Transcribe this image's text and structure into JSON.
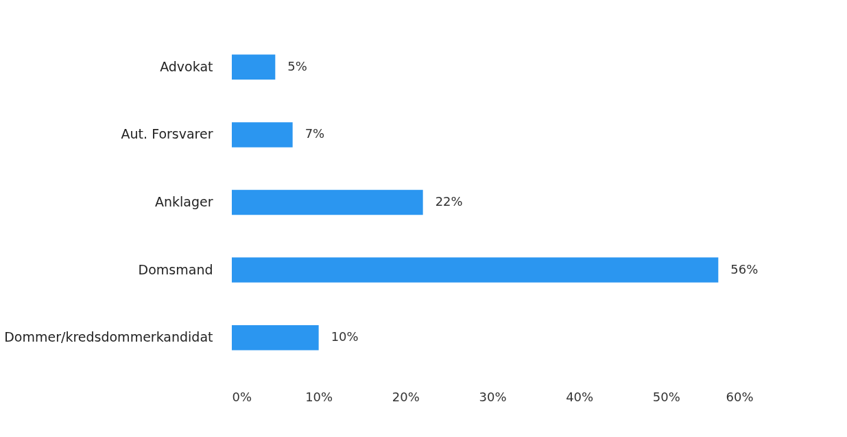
{
  "chart_data": {
    "type": "bar",
    "orientation": "horizontal",
    "categories": [
      "Advokat",
      "Aut. Forsvarer",
      "Anklager",
      "Domsmand",
      "Dommer/kredsdommerkandidat"
    ],
    "values": [
      5,
      7,
      22,
      56,
      10
    ],
    "value_labels": [
      "5%",
      "7%",
      "22%",
      "56%",
      "10%"
    ],
    "color": "#2b96f0",
    "xlim": [
      0,
      60
    ],
    "xticks": [
      {
        "value": 0,
        "label": "0%"
      },
      {
        "value": 10,
        "label": "10%"
      },
      {
        "value": 20,
        "label": "20%"
      },
      {
        "value": 30,
        "label": "30%"
      },
      {
        "value": 40,
        "label": "40%"
      },
      {
        "value": 50,
        "label": "50%"
      },
      {
        "value": 60,
        "label": "60%"
      }
    ],
    "grid": false
  }
}
